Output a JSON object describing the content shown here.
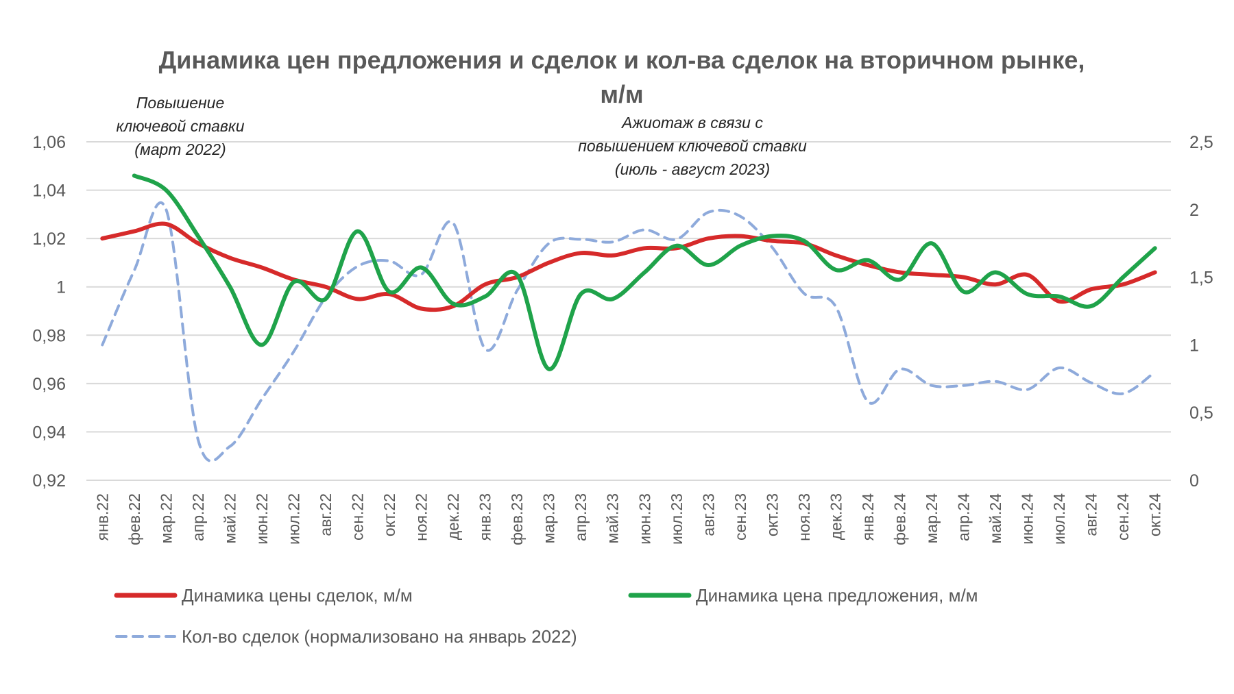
{
  "chart_data": {
    "type": "line",
    "title": [
      "Динамика цен предложения и сделок и кол-ва сделок на вторичном рынке,",
      "м/м"
    ],
    "categories": [
      "янв.22",
      "фев.22",
      "мар.22",
      "апр.22",
      "май.22",
      "июн.22",
      "июл.22",
      "авг.22",
      "сен.22",
      "окт.22",
      "ноя.22",
      "дек.22",
      "янв.23",
      "фев.23",
      "мар.23",
      "апр.23",
      "май.23",
      "июн.23",
      "июл.23",
      "авг.23",
      "сен.23",
      "окт.23",
      "ноя.23",
      "дек.23",
      "янв.24",
      "фев.24",
      "мар.24",
      "апр.24",
      "май.24",
      "июн.24",
      "июл.24",
      "авг.24",
      "сен.24",
      "окт.24"
    ],
    "y_left": {
      "min": 0.92,
      "max": 1.06,
      "ticks": [
        "0,92",
        "0,94",
        "0,96",
        "0,98",
        "1",
        "1,02",
        "1,04",
        "1,06"
      ]
    },
    "y_right": {
      "min": 0,
      "max": 2.5,
      "ticks": [
        "0",
        "0,5",
        "1",
        "1,5",
        "2",
        "2,5"
      ]
    },
    "grid": true,
    "legend_position": "bottom",
    "series": [
      {
        "name": "Динамика цены сделок, м/м",
        "axis": "left",
        "color": "#d62a2a",
        "style": "solid",
        "values": [
          1.02,
          1.023,
          1.026,
          1.018,
          1.012,
          1.008,
          1.003,
          1.0,
          0.995,
          0.997,
          0.991,
          0.992,
          1.001,
          1.004,
          1.01,
          1.014,
          1.013,
          1.016,
          1.016,
          1.02,
          1.021,
          1.019,
          1.018,
          1.013,
          1.009,
          1.006,
          1.005,
          1.004,
          1.001,
          1.005,
          0.994,
          0.999,
          1.001,
          1.006
        ]
      },
      {
        "name": "Динамика цена предложения, м/м",
        "axis": "left",
        "color": "#1fa34a",
        "style": "solid",
        "values": [
          null,
          1.046,
          1.04,
          1.021,
          1.0,
          0.976,
          1.002,
          0.995,
          1.023,
          0.998,
          1.008,
          0.993,
          0.996,
          1.005,
          0.966,
          0.997,
          0.995,
          1.006,
          1.017,
          1.009,
          1.017,
          1.021,
          1.019,
          1.007,
          1.011,
          1.003,
          1.018,
          0.998,
          1.006,
          0.997,
          0.996,
          0.992,
          1.004,
          1.016
        ]
      },
      {
        "name": "Кол-во сделок (нормализовано на январь 2022)",
        "axis": "right",
        "color": "#8eaadb",
        "style": "dashed",
        "values": [
          1.0,
          1.55,
          2.0,
          0.3,
          0.25,
          0.6,
          0.95,
          1.35,
          1.58,
          1.62,
          1.52,
          1.9,
          0.97,
          1.4,
          1.75,
          1.78,
          1.76,
          1.85,
          1.78,
          1.98,
          1.95,
          1.72,
          1.38,
          1.28,
          0.58,
          0.82,
          0.7,
          0.7,
          0.73,
          0.67,
          0.83,
          0.72,
          0.64,
          0.8
        ]
      }
    ],
    "annotations": [
      {
        "lines": [
          "Повышение",
          "ключевой ставки",
          "(март 2022)"
        ]
      },
      {
        "lines": [
          "Ажиотаж в связи с",
          "повышением ключевой ставки",
          "(июль - август 2023)"
        ]
      }
    ]
  }
}
